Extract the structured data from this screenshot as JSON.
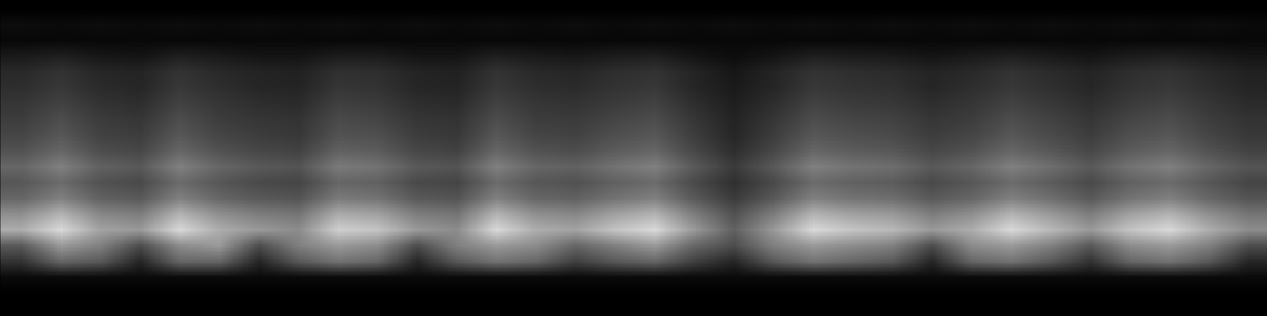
{
  "chart_data": {
    "type": "heatmap",
    "tick_labels": false,
    "zlim": [
      0,
      1
    ],
    "cells": [
      [
        0,
        0,
        0,
        0,
        0,
        0,
        0,
        0,
        0,
        0,
        0,
        0,
        0,
        0,
        0,
        0,
        0,
        0,
        0,
        0,
        0,
        0,
        0,
        0,
        0,
        0,
        0,
        0,
        0,
        0,
        0,
        0
      ],
      [
        0.05,
        0.04,
        0.05,
        0.04,
        0.05,
        0.04,
        0.05,
        0.04,
        0.05,
        0.04,
        0.05,
        0.04,
        0.05,
        0.04,
        0.05,
        0.04,
        0.05,
        0.04,
        0.05,
        0.04,
        0.05,
        0.04,
        0.05,
        0.04,
        0.05,
        0.04,
        0.05,
        0.04,
        0.05,
        0.04,
        0.05,
        0.04
      ],
      [
        0.03,
        0.03,
        0.03,
        0.03,
        0.03,
        0.03,
        0.03,
        0.03,
        0.03,
        0.03,
        0.03,
        0.03,
        0.03,
        0.03,
        0.03,
        0.03,
        0.03,
        0.03,
        0.03,
        0.03,
        0.03,
        0.03,
        0.03,
        0.03,
        0.03,
        0.03,
        0.03,
        0.03,
        0.03,
        0.03,
        0.03,
        0.03
      ],
      [
        0.1,
        0.12,
        0.09,
        0.08,
        0.12,
        0.1,
        0.08,
        0.08,
        0.11,
        0.11,
        0.08,
        0.08,
        0.12,
        0.1,
        0.09,
        0.11,
        0.12,
        0.08,
        0.05,
        0.08,
        0.12,
        0.11,
        0.1,
        0.08,
        0.1,
        0.12,
        0.1,
        0.08,
        0.11,
        0.12,
        0.1,
        0.08
      ],
      [
        0.16,
        0.2,
        0.15,
        0.14,
        0.2,
        0.16,
        0.14,
        0.13,
        0.19,
        0.18,
        0.14,
        0.13,
        0.2,
        0.16,
        0.15,
        0.18,
        0.2,
        0.14,
        0.09,
        0.14,
        0.2,
        0.18,
        0.17,
        0.14,
        0.16,
        0.2,
        0.17,
        0.14,
        0.18,
        0.2,
        0.16,
        0.13
      ],
      [
        0.18,
        0.22,
        0.17,
        0.15,
        0.22,
        0.18,
        0.15,
        0.14,
        0.21,
        0.2,
        0.15,
        0.14,
        0.22,
        0.18,
        0.17,
        0.2,
        0.22,
        0.15,
        0.1,
        0.15,
        0.22,
        0.2,
        0.19,
        0.15,
        0.18,
        0.22,
        0.19,
        0.15,
        0.2,
        0.22,
        0.18,
        0.14
      ],
      [
        0.21,
        0.26,
        0.2,
        0.18,
        0.26,
        0.21,
        0.18,
        0.17,
        0.25,
        0.23,
        0.18,
        0.17,
        0.26,
        0.21,
        0.2,
        0.23,
        0.26,
        0.18,
        0.12,
        0.18,
        0.26,
        0.23,
        0.22,
        0.18,
        0.21,
        0.26,
        0.22,
        0.18,
        0.23,
        0.26,
        0.21,
        0.17
      ],
      [
        0.24,
        0.3,
        0.23,
        0.21,
        0.3,
        0.24,
        0.21,
        0.2,
        0.29,
        0.27,
        0.21,
        0.2,
        0.3,
        0.24,
        0.23,
        0.27,
        0.3,
        0.21,
        0.14,
        0.21,
        0.3,
        0.27,
        0.26,
        0.21,
        0.24,
        0.3,
        0.26,
        0.21,
        0.27,
        0.3,
        0.24,
        0.2
      ],
      [
        0.27,
        0.34,
        0.26,
        0.24,
        0.34,
        0.27,
        0.24,
        0.22,
        0.32,
        0.31,
        0.24,
        0.22,
        0.34,
        0.27,
        0.26,
        0.31,
        0.34,
        0.24,
        0.15,
        0.24,
        0.34,
        0.31,
        0.29,
        0.24,
        0.27,
        0.34,
        0.29,
        0.24,
        0.31,
        0.34,
        0.27,
        0.22
      ],
      [
        0.32,
        0.4,
        0.3,
        0.28,
        0.4,
        0.32,
        0.28,
        0.26,
        0.38,
        0.36,
        0.28,
        0.26,
        0.4,
        0.32,
        0.3,
        0.36,
        0.4,
        0.28,
        0.18,
        0.28,
        0.4,
        0.36,
        0.34,
        0.28,
        0.32,
        0.4,
        0.34,
        0.28,
        0.36,
        0.4,
        0.32,
        0.26
      ],
      [
        0.4,
        0.5,
        0.38,
        0.35,
        0.5,
        0.4,
        0.35,
        0.33,
        0.48,
        0.45,
        0.35,
        0.33,
        0.5,
        0.4,
        0.38,
        0.45,
        0.5,
        0.35,
        0.23,
        0.35,
        0.5,
        0.45,
        0.43,
        0.35,
        0.4,
        0.5,
        0.43,
        0.35,
        0.45,
        0.5,
        0.4,
        0.33
      ],
      [
        0.34,
        0.42,
        0.32,
        0.29,
        0.42,
        0.34,
        0.29,
        0.27,
        0.4,
        0.38,
        0.29,
        0.27,
        0.42,
        0.34,
        0.32,
        0.38,
        0.42,
        0.29,
        0.19,
        0.29,
        0.42,
        0.38,
        0.36,
        0.29,
        0.34,
        0.42,
        0.36,
        0.29,
        0.38,
        0.42,
        0.34,
        0.27
      ],
      [
        0.4,
        0.5,
        0.38,
        0.35,
        0.5,
        0.4,
        0.35,
        0.33,
        0.48,
        0.45,
        0.35,
        0.33,
        0.5,
        0.4,
        0.38,
        0.45,
        0.5,
        0.35,
        0.23,
        0.35,
        0.5,
        0.45,
        0.43,
        0.35,
        0.4,
        0.5,
        0.43,
        0.35,
        0.45,
        0.5,
        0.4,
        0.33
      ],
      [
        0.56,
        0.7,
        0.53,
        0.49,
        0.7,
        0.56,
        0.49,
        0.46,
        0.67,
        0.63,
        0.49,
        0.46,
        0.7,
        0.56,
        0.53,
        0.63,
        0.7,
        0.49,
        0.32,
        0.49,
        0.7,
        0.63,
        0.6,
        0.49,
        0.56,
        0.7,
        0.6,
        0.49,
        0.63,
        0.7,
        0.56,
        0.46
      ],
      [
        0.68,
        0.85,
        0.64,
        0.6,
        0.85,
        0.68,
        0.6,
        0.55,
        0.81,
        0.77,
        0.6,
        0.55,
        0.85,
        0.68,
        0.64,
        0.77,
        0.85,
        0.6,
        0.38,
        0.6,
        0.85,
        0.77,
        0.72,
        0.6,
        0.68,
        0.85,
        0.72,
        0.6,
        0.77,
        0.85,
        0.68,
        0.55
      ],
      [
        0.35,
        0.6,
        0.5,
        0.3,
        0.55,
        0.6,
        0.3,
        0.5,
        0.6,
        0.55,
        0.3,
        0.5,
        0.6,
        0.55,
        0.4,
        0.5,
        0.6,
        0.4,
        0.3,
        0.5,
        0.6,
        0.55,
        0.5,
        0.3,
        0.55,
        0.6,
        0.5,
        0.35,
        0.55,
        0.6,
        0.5,
        0.3
      ],
      [
        0.2,
        0.4,
        0.35,
        0.15,
        0.4,
        0.4,
        0.15,
        0.35,
        0.45,
        0.4,
        0.15,
        0.35,
        0.45,
        0.4,
        0.25,
        0.35,
        0.4,
        0.25,
        0.15,
        0.35,
        0.45,
        0.4,
        0.35,
        0.15,
        0.4,
        0.45,
        0.35,
        0.2,
        0.4,
        0.45,
        0.35,
        0.15
      ],
      [
        0.04,
        0.04,
        0.04,
        0.04,
        0.04,
        0.04,
        0.04,
        0.04,
        0.04,
        0.04,
        0.04,
        0.04,
        0.04,
        0.04,
        0.04,
        0.04,
        0.04,
        0.04,
        0.04,
        0.04,
        0.04,
        0.04,
        0.04,
        0.04,
        0.04,
        0.04,
        0.04,
        0.04,
        0.04,
        0.04,
        0.04,
        0.04
      ],
      [
        0,
        0,
        0,
        0,
        0,
        0,
        0,
        0,
        0,
        0,
        0,
        0,
        0,
        0,
        0,
        0,
        0,
        0,
        0,
        0,
        0,
        0,
        0,
        0,
        0,
        0,
        0,
        0,
        0,
        0,
        0,
        0
      ],
      [
        0,
        0,
        0,
        0,
        0,
        0,
        0,
        0,
        0,
        0,
        0,
        0,
        0,
        0,
        0,
        0,
        0,
        0,
        0,
        0,
        0,
        0,
        0,
        0,
        0,
        0,
        0,
        0,
        0,
        0,
        0,
        0
      ]
    ]
  }
}
